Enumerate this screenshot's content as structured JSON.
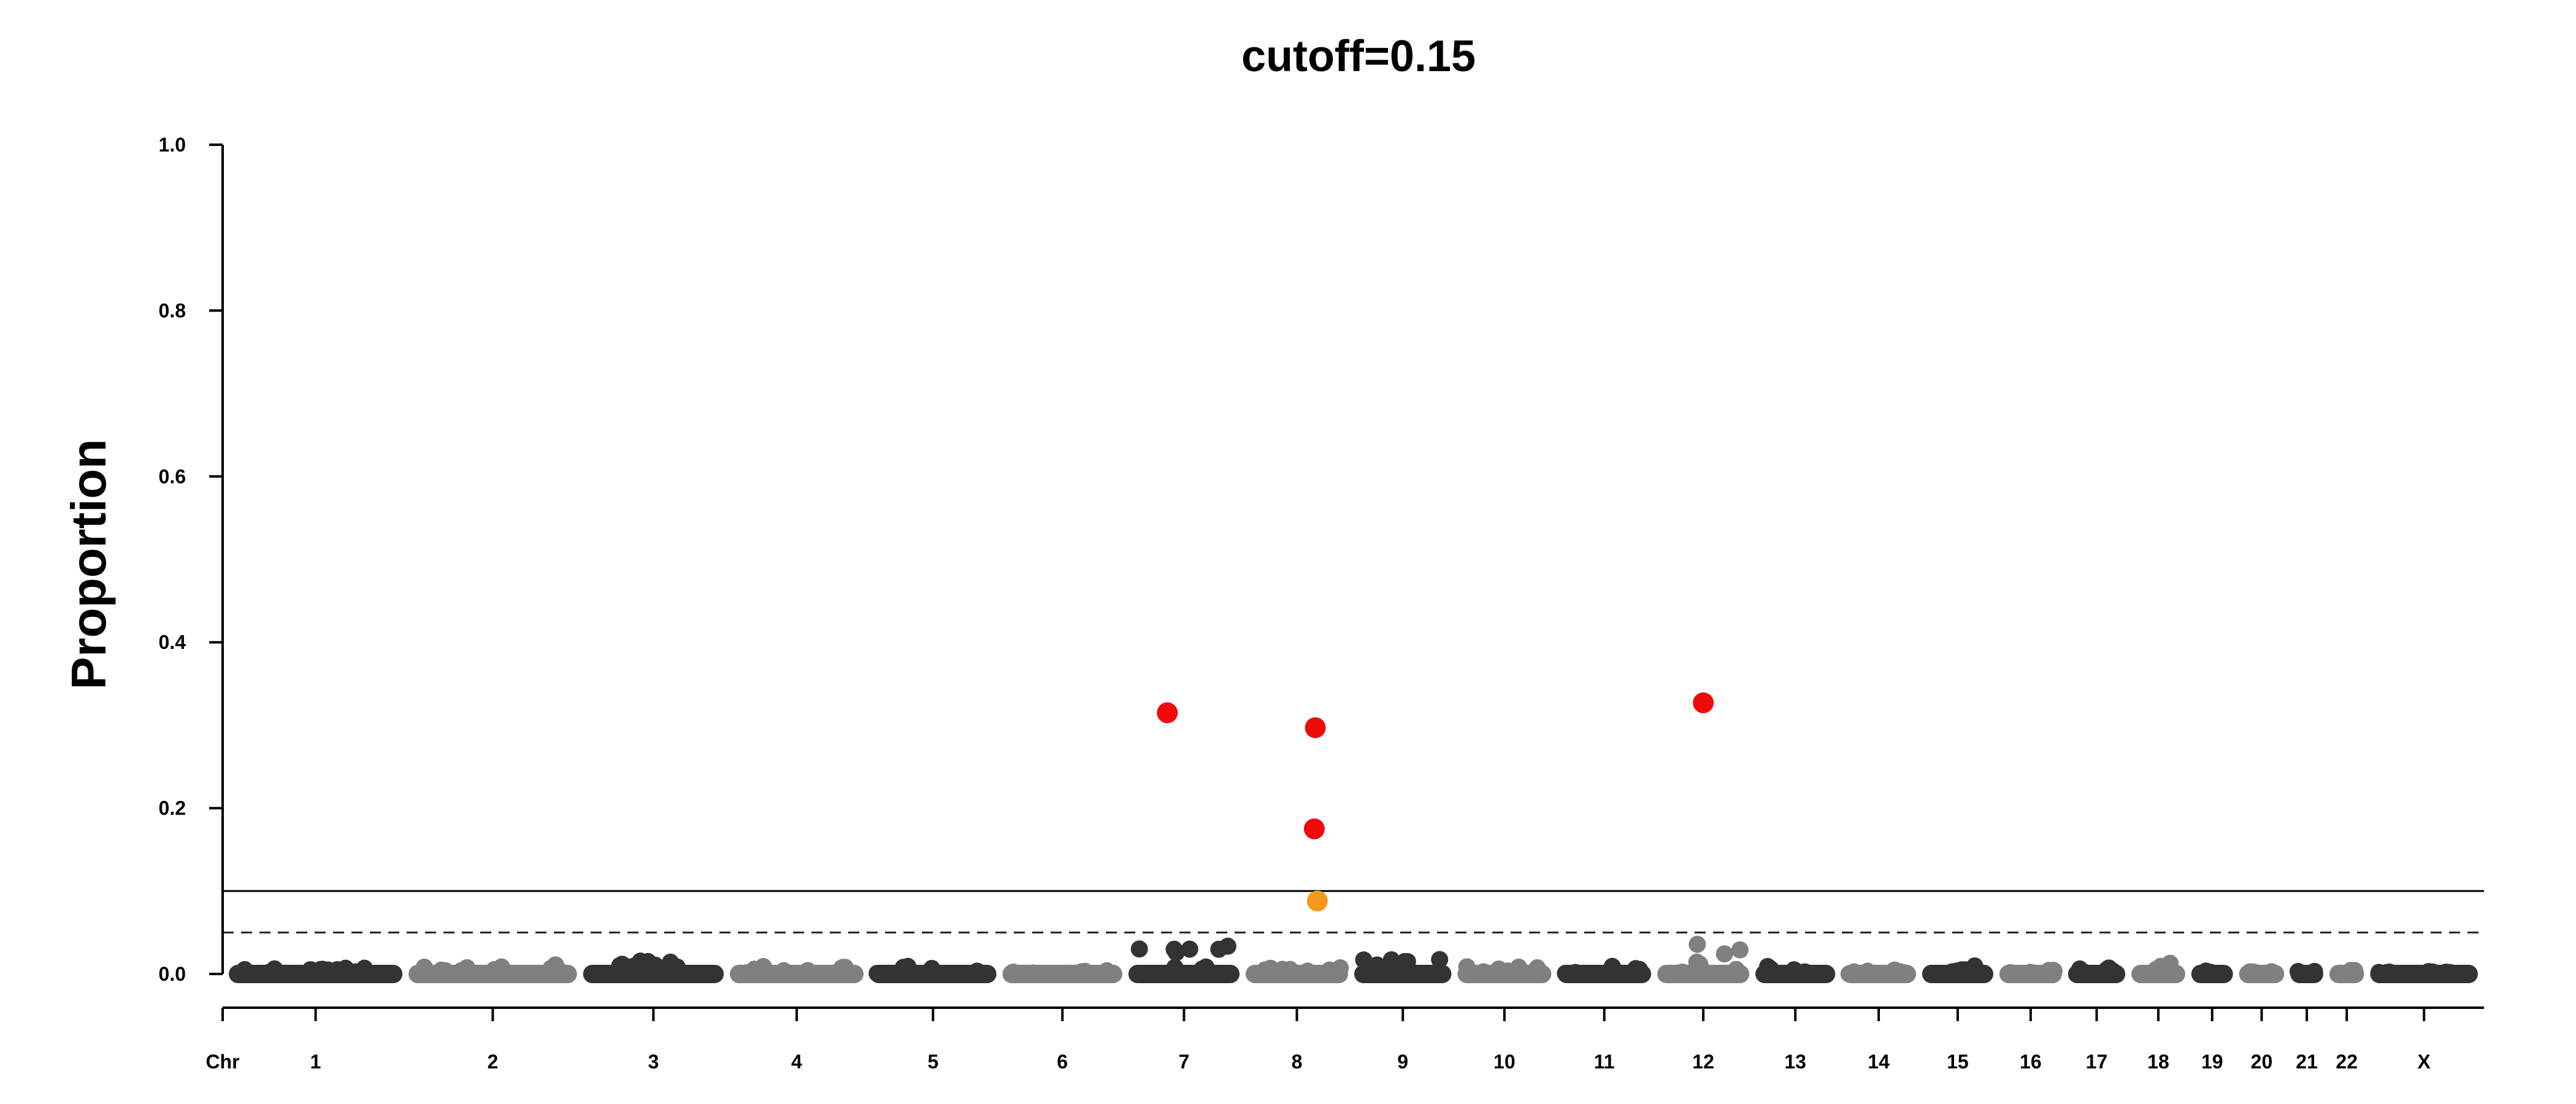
{
  "chart_data": {
    "type": "scatter",
    "title": "cutoff=0.15",
    "xlabel": "",
    "ylabel": "Proportion",
    "ylim": [
      0,
      1
    ],
    "yticks": [
      "0.0",
      "0.2",
      "0.4",
      "0.6",
      "0.8",
      "1.0"
    ],
    "x_axis_prefix_label": "Chr",
    "chromosomes": [
      "1",
      "2",
      "3",
      "4",
      "5",
      "6",
      "7",
      "8",
      "9",
      "10",
      "11",
      "12",
      "13",
      "14",
      "15",
      "16",
      "17",
      "18",
      "19",
      "20",
      "21",
      "22",
      "X"
    ],
    "chromosome_relative_lengths": [
      1.0,
      0.97,
      0.81,
      0.77,
      0.73,
      0.69,
      0.64,
      0.59,
      0.56,
      0.54,
      0.54,
      0.53,
      0.46,
      0.43,
      0.41,
      0.36,
      0.33,
      0.31,
      0.24,
      0.26,
      0.19,
      0.2,
      0.62
    ],
    "chromosome_colors": [
      "#333333",
      "#808080"
    ],
    "background_max_proportion": [
      0.01,
      0.012,
      0.022,
      0.012,
      0.012,
      0.006,
      0.045,
      0.01,
      0.03,
      0.012,
      0.012,
      0.048,
      0.012,
      0.008,
      0.01,
      0.006,
      0.01,
      0.014,
      0.004,
      0.004,
      0.01,
      0.006,
      0.004
    ],
    "reference_lines": [
      {
        "y": 0.1,
        "style": "solid"
      },
      {
        "y": 0.05,
        "style": "dashed"
      }
    ],
    "highlighted_points": [
      {
        "chromosome": "7",
        "position": 0.35,
        "y": 0.315,
        "color": "#f00a0a"
      },
      {
        "chromosome": "8",
        "position": 0.68,
        "y": 0.297,
        "color": "#f00a0a"
      },
      {
        "chromosome": "8",
        "position": 0.67,
        "y": 0.175,
        "color": "#f00a0a"
      },
      {
        "chromosome": "8",
        "position": 0.7,
        "y": 0.088,
        "color": "#f39a1a"
      },
      {
        "chromosome": "12",
        "position": 0.5,
        "y": 0.327,
        "color": "#f00a0a"
      }
    ]
  }
}
